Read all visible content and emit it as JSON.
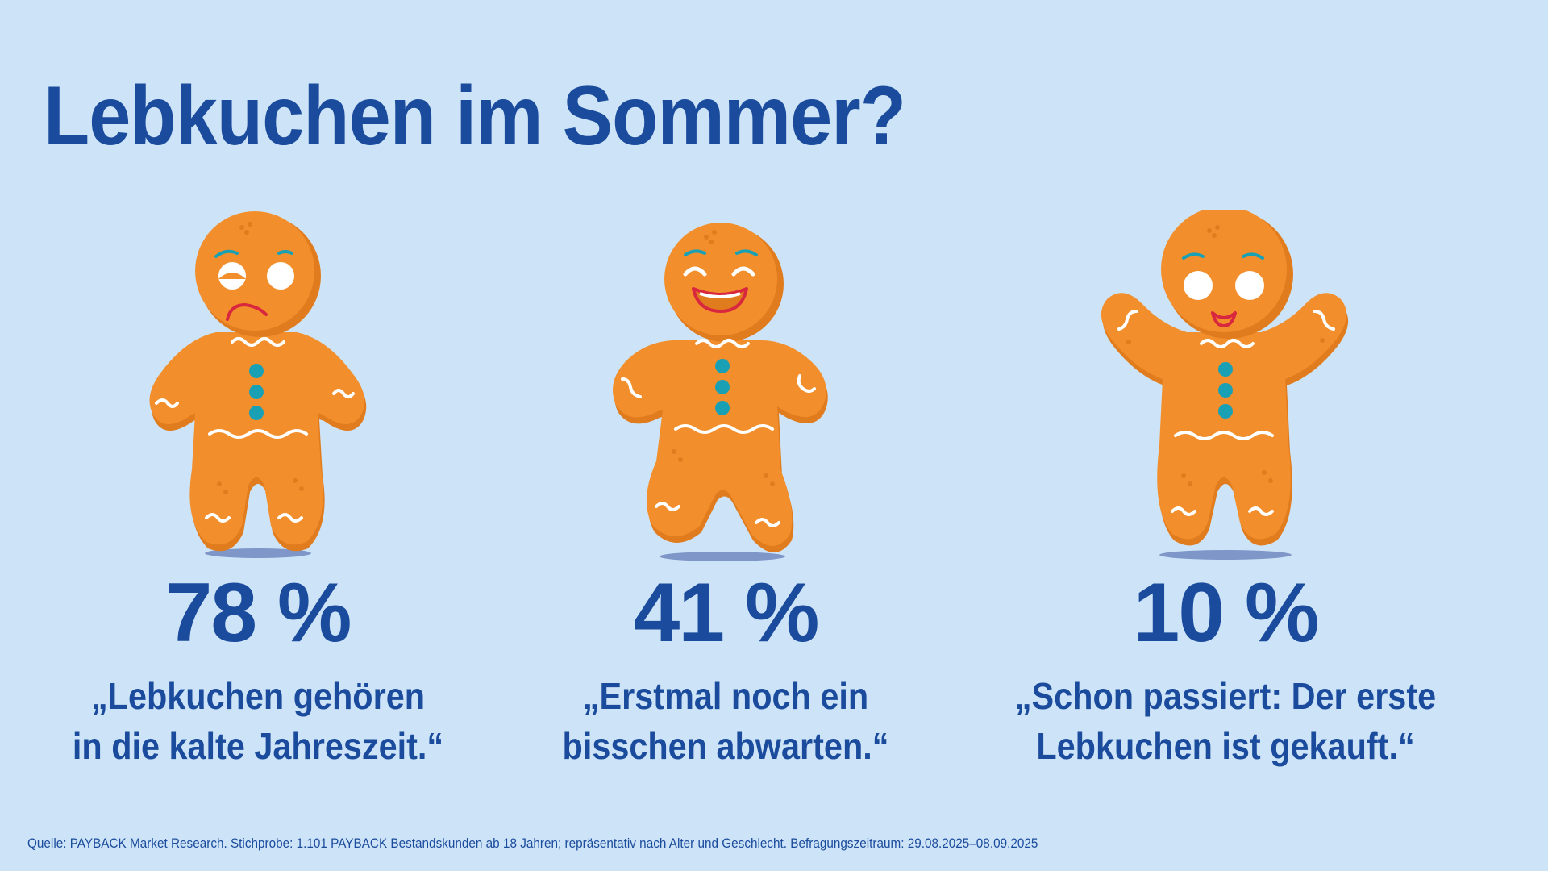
{
  "title": "Lebkuchen im Sommer?",
  "colors": {
    "background": "#cde4f8",
    "text": "#1b4b9c",
    "gingerbread": "#f28f2c",
    "gingerbread_shadow": "#e07c1e",
    "icing": "#ffffff",
    "buttons": "#1aa0b4",
    "mouth": "#d8273e",
    "ground_shadow": "#7f96c9"
  },
  "chart_data": {
    "type": "table",
    "values": [
      78,
      41,
      10
    ],
    "unit": "%",
    "categories": [
      "„Lebkuchen gehören in die kalte Jahreszeit.“",
      "„Erstmal noch ein bisschen abwarten.“",
      "„Schon passiert: Der erste Lebkuchen ist gekauft.“"
    ]
  },
  "stats": [
    {
      "percent": "78 %",
      "quote_line1": "„Lebkuchen gehören",
      "quote_line2": "in die kalte Jahreszeit.“",
      "mood": "sad-gingerbread-icon"
    },
    {
      "percent": "41 %",
      "quote_line1": "„Erstmal noch ein",
      "quote_line2": "bisschen abwarten.“",
      "mood": "laughing-gingerbread-icon"
    },
    {
      "percent": "10 %",
      "quote_line1": "„Schon passiert: Der erste",
      "quote_line2": "Lebkuchen ist gekauft.“",
      "mood": "happy-gingerbread-icon"
    }
  ],
  "source": "Quelle: PAYBACK Market Research. Stichprobe: 1.101 PAYBACK Bestandskunden ab 18 Jahren; repräsentativ nach Alter und Geschlecht. Befragungszeitraum: 29.08.2025–08.09.2025"
}
